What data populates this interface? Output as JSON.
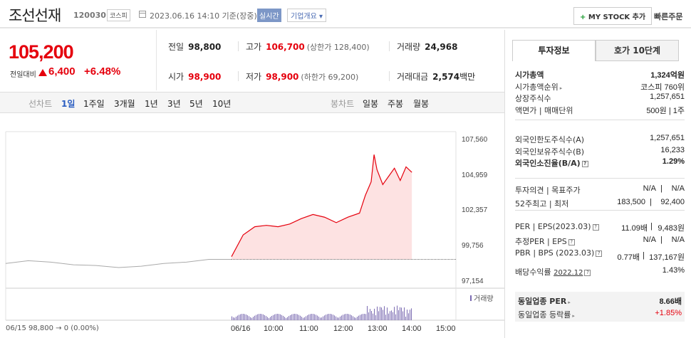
{
  "header": {
    "name": "조선선재",
    "code": "120030",
    "market": "코스피",
    "datetime": "2023.06.16 14:10 기준(장중)",
    "realtime": "실시간",
    "company_info": "기업개요",
    "mystock_plus": "+",
    "mystock": "MY STOCK 추가",
    "quick_order": "빠른주문"
  },
  "price": {
    "current": "105,200",
    "prev_label": "전일대비",
    "change_amount": "6,400",
    "change_rate": "+6.48%",
    "up_color": "#e5000d"
  },
  "stats": {
    "prev_close_label": "전일",
    "prev_close": "98,800",
    "high_label": "고가",
    "high": "106,700",
    "upper_limit": "(상한가 128,400)",
    "volume_label": "거래량",
    "volume": "24,968",
    "open_label": "시가",
    "open": "98,900",
    "low_label": "저가",
    "low": "98,900",
    "lower_limit": "(하한가 69,200)",
    "amount_label": "거래대금",
    "amount": "2,574",
    "amount_unit": "백만"
  },
  "period_bar": {
    "line_chart": "선차트",
    "periods": [
      "1일",
      "1주일",
      "3개월",
      "1년",
      "3년",
      "5년",
      "10년"
    ],
    "candle_chart": "봉차트",
    "candles": [
      "일봉",
      "주봉",
      "월봉"
    ]
  },
  "chart_data": {
    "type": "line",
    "yticks": [
      "107,560",
      "104,959",
      "102,357",
      "99,756",
      "97,154"
    ],
    "ylim": [
      97154,
      107560
    ],
    "xticks": [
      "06/16",
      "10:00",
      "11:00",
      "12:00",
      "13:00",
      "14:00",
      "15:00"
    ],
    "base_line": "06/15 98,800 → 0 (0.00%)",
    "prev_close": 98800,
    "volume_legend": "거래량",
    "prev_day_series": {
      "x": [
        0,
        0.1,
        0.2,
        0.3,
        0.4,
        0.5,
        0.6,
        0.7,
        0.8,
        0.9,
        1.0
      ],
      "values": [
        98500,
        98700,
        98600,
        98400,
        98350,
        98200,
        98300,
        98500,
        98600,
        98800,
        98800
      ]
    },
    "today_series": {
      "x": [
        "09:00",
        "09:20",
        "09:40",
        "10:00",
        "10:20",
        "10:40",
        "11:00",
        "11:20",
        "11:40",
        "12:00",
        "12:20",
        "12:40",
        "12:50",
        "13:00",
        "13:05",
        "13:10",
        "13:20",
        "13:30",
        "13:40",
        "13:50",
        "14:00",
        "14:10"
      ],
      "values": [
        99000,
        100600,
        101200,
        101300,
        101200,
        101400,
        101800,
        102100,
        101900,
        101500,
        101900,
        102200,
        103500,
        104500,
        106500,
        105400,
        104300,
        104900,
        105500,
        104600,
        105600,
        105200
      ]
    },
    "up_color": "#e5000d",
    "fill_color": "#fde2e2",
    "prev_color": "#aaaaaa",
    "volume_color": "#7a6ab1"
  },
  "right_panel": {
    "tabs": [
      "투자정보",
      "호가 10단계"
    ],
    "market_cap_label": "시가총액",
    "market_cap": "1,324억원",
    "cap_rank_label": "시가총액순위",
    "cap_rank": "코스피 760위",
    "shares_label": "상장주식수",
    "shares": "1,257,651",
    "par_label": "액면가 | 매매단위",
    "par": "500원 | 1주",
    "foreign_limit_label": "외국인한도주식수(A)",
    "foreign_limit": "1,257,651",
    "foreign_hold_label": "외국인보유주식수(B)",
    "foreign_hold": "16,233",
    "foreign_ratio_label": "외국인소진율(B/A)",
    "foreign_ratio": "1.29%",
    "opinion_label": "투자의견 | 목표주가",
    "opinion": "N/A",
    "target": "N/A",
    "week52_label": "52주최고 | 최저",
    "week52_high": "183,500",
    "week52_low": "92,400",
    "per_label": "PER | EPS(2023.03)",
    "per": "11.09배",
    "eps": "9,483원",
    "est_per_label": "추정PER | EPS",
    "est_per": "N/A",
    "est_eps": "N/A",
    "pbr_label": "PBR | BPS (2023.03)",
    "pbr": "0.77배",
    "bps": "137,167원",
    "dividend_label": "배당수익률",
    "dividend_year": "2022.12",
    "dividend": "1.43%",
    "sector_per_label": "동일업종 PER",
    "sector_per": "8.66배",
    "sector_rate_label": "동일업종 등락률",
    "sector_rate": "+1.85%",
    "help_glyph": "?",
    "arrow_glyph": "▸"
  }
}
